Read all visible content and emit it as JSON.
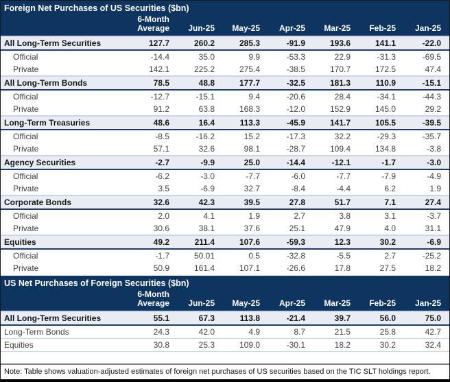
{
  "colors": {
    "header_navy": "#0e355f",
    "section_row_bg": "#e9edf3",
    "section_underline_navy": "#1d3c66",
    "light_blue_line": "#c7d6e9",
    "note_rule_gray": "#7f7f7f"
  },
  "columns": {
    "avg_line1": "6-Month",
    "avg_line2": "Average",
    "months": [
      "Jun-25",
      "May-25",
      "Apr-25",
      "Mar-25",
      "Feb-25",
      "Jan-25"
    ]
  },
  "tables": [
    {
      "title": "Foreign Net Purchases of US Securities ($bn)",
      "rows": [
        {
          "style": "section",
          "label": "All Long-Term Securities",
          "values": [
            "127.7",
            "260.2",
            "285.3",
            "-91.9",
            "193.6",
            "141.1",
            "-22.0"
          ]
        },
        {
          "style": "sub",
          "label": "Official",
          "values": [
            "-14.4",
            "35.0",
            "9.9",
            "-53.3",
            "22.9",
            "-31.3",
            "-69.5"
          ]
        },
        {
          "style": "sub",
          "label": "Private",
          "values": [
            "142.1",
            "225.2",
            "275.4",
            "-38.5",
            "170.7",
            "172.5",
            "47.4"
          ]
        },
        {
          "style": "section",
          "label": "All Long-Term Bonds",
          "values": [
            "78.5",
            "48.8",
            "177.7",
            "-32.5",
            "181.3",
            "110.9",
            "-15.1"
          ]
        },
        {
          "style": "sub",
          "label": "Official",
          "values": [
            "-12.7",
            "-15.1",
            "9.4",
            "-20.6",
            "28.4",
            "-34.1",
            "-44.3"
          ]
        },
        {
          "style": "sub",
          "label": "Private",
          "values": [
            "91.2",
            "63.8",
            "168.3",
            "-12.0",
            "152.9",
            "145.0",
            "29.2"
          ]
        },
        {
          "style": "section",
          "label": "Long-Term Treasuries",
          "values": [
            "48.6",
            "16.4",
            "113.3",
            "-45.9",
            "141.7",
            "105.5",
            "-39.5"
          ]
        },
        {
          "style": "sub",
          "label": "Official",
          "values": [
            "-8.5",
            "-16.2",
            "15.2",
            "-17.3",
            "32.2",
            "-29.3",
            "-35.7"
          ]
        },
        {
          "style": "sub",
          "label": "Private",
          "values": [
            "57.1",
            "32.6",
            "98.1",
            "-28.7",
            "109.4",
            "134.8",
            "-3.8"
          ]
        },
        {
          "style": "section",
          "label": "Agency Securities",
          "values": [
            "-2.7",
            "-9.9",
            "25.0",
            "-14.4",
            "-12.1",
            "-1.7",
            "-3.0"
          ]
        },
        {
          "style": "sub",
          "label": "Official",
          "values": [
            "-6.2",
            "-3.0",
            "-7.7",
            "-6.0",
            "-7.7",
            "-7.9",
            "-4.9"
          ]
        },
        {
          "style": "sub",
          "label": "Private",
          "values": [
            "3.5",
            "-6.9",
            "32.7",
            "-8.4",
            "-4.4",
            "6.2",
            "1.9"
          ]
        },
        {
          "style": "section",
          "label": "Corporate Bonds",
          "values": [
            "32.6",
            "42.3",
            "39.5",
            "27.8",
            "51.7",
            "7.1",
            "27.4"
          ]
        },
        {
          "style": "sub",
          "label": "Official",
          "values": [
            "2.0",
            "4.1",
            "1.9",
            "2.7",
            "3.8",
            "3.1",
            "-3.7"
          ]
        },
        {
          "style": "sub",
          "label": "Private",
          "values": [
            "30.6",
            "38.1",
            "37.6",
            "25.1",
            "47.9",
            "4.0",
            "31.1"
          ]
        },
        {
          "style": "section",
          "label": "Equities",
          "values": [
            "49.2",
            "211.4",
            "107.6",
            "-59.3",
            "12.3",
            "30.2",
            "-6.9"
          ]
        },
        {
          "style": "sub",
          "label": "Official",
          "values": [
            "-1.7",
            "50.01",
            "0.5",
            "-32.8",
            "-5.5",
            "2.7",
            "-25.2"
          ]
        },
        {
          "style": "sub",
          "label": "Private",
          "values": [
            "50.9",
            "161.4",
            "107.1",
            "-26.6",
            "17.8",
            "27.5",
            "18.2"
          ]
        }
      ]
    },
    {
      "title": "US Net Purchases of Foreign Securities ($bn)",
      "rows": [
        {
          "style": "section",
          "label": "All Long-Term Securities",
          "values": [
            "55.1",
            "67.3",
            "113.8",
            "-21.4",
            "39.7",
            "56.0",
            "75.0"
          ]
        },
        {
          "style": "plain",
          "label": "Long-Term Bonds",
          "values": [
            "24.3",
            "42.0",
            "4.9",
            "8.7",
            "21.5",
            "25.8",
            "42.7"
          ]
        },
        {
          "style": "plain",
          "label": "Equities",
          "values": [
            "30.8",
            "25.3",
            "109.0",
            "-30.1",
            "18.2",
            "30.2",
            "32.4"
          ]
        }
      ]
    }
  ],
  "note": "Note: Table shows valuation-adjusted estimates of foreign net purchases of US securities based on the TIC SLT holdings report.",
  "chart_data": [
    {
      "type": "table",
      "title": "Foreign Net Purchases of US Securities ($bn)",
      "columns": [
        "6-Month Average",
        "Jun-25",
        "May-25",
        "Apr-25",
        "Mar-25",
        "Feb-25",
        "Jan-25"
      ],
      "rows": [
        {
          "label": "All Long-Term Securities",
          "values": [
            127.7,
            260.2,
            285.3,
            -91.9,
            193.6,
            141.1,
            -22.0
          ]
        },
        {
          "label": "All Long-Term Securities / Official",
          "values": [
            -14.4,
            35.0,
            9.9,
            -53.3,
            22.9,
            -31.3,
            -69.5
          ]
        },
        {
          "label": "All Long-Term Securities / Private",
          "values": [
            142.1,
            225.2,
            275.4,
            -38.5,
            170.7,
            172.5,
            47.4
          ]
        },
        {
          "label": "All Long-Term Bonds",
          "values": [
            78.5,
            48.8,
            177.7,
            -32.5,
            181.3,
            110.9,
            -15.1
          ]
        },
        {
          "label": "All Long-Term Bonds / Official",
          "values": [
            -12.7,
            -15.1,
            9.4,
            -20.6,
            28.4,
            -34.1,
            -44.3
          ]
        },
        {
          "label": "All Long-Term Bonds / Private",
          "values": [
            91.2,
            63.8,
            168.3,
            -12.0,
            152.9,
            145.0,
            29.2
          ]
        },
        {
          "label": "Long-Term Treasuries",
          "values": [
            48.6,
            16.4,
            113.3,
            -45.9,
            141.7,
            105.5,
            -39.5
          ]
        },
        {
          "label": "Long-Term Treasuries / Official",
          "values": [
            -8.5,
            -16.2,
            15.2,
            -17.3,
            32.2,
            -29.3,
            -35.7
          ]
        },
        {
          "label": "Long-Term Treasuries / Private",
          "values": [
            57.1,
            32.6,
            98.1,
            -28.7,
            109.4,
            134.8,
            -3.8
          ]
        },
        {
          "label": "Agency Securities",
          "values": [
            -2.7,
            -9.9,
            25.0,
            -14.4,
            -12.1,
            -1.7,
            -3.0
          ]
        },
        {
          "label": "Agency Securities / Official",
          "values": [
            -6.2,
            -3.0,
            -7.7,
            -6.0,
            -7.7,
            -7.9,
            -4.9
          ]
        },
        {
          "label": "Agency Securities / Private",
          "values": [
            3.5,
            -6.9,
            32.7,
            -8.4,
            -4.4,
            6.2,
            1.9
          ]
        },
        {
          "label": "Corporate Bonds",
          "values": [
            32.6,
            42.3,
            39.5,
            27.8,
            51.7,
            7.1,
            27.4
          ]
        },
        {
          "label": "Corporate Bonds / Official",
          "values": [
            2.0,
            4.1,
            1.9,
            2.7,
            3.8,
            3.1,
            -3.7
          ]
        },
        {
          "label": "Corporate Bonds / Private",
          "values": [
            30.6,
            38.1,
            37.6,
            25.1,
            47.9,
            4.0,
            31.1
          ]
        },
        {
          "label": "Equities",
          "values": [
            49.2,
            211.4,
            107.6,
            -59.3,
            12.3,
            30.2,
            -6.9
          ]
        },
        {
          "label": "Equities / Official",
          "values": [
            -1.7,
            50.01,
            0.5,
            -32.8,
            -5.5,
            2.7,
            -25.2
          ]
        },
        {
          "label": "Equities / Private",
          "values": [
            50.9,
            161.4,
            107.1,
            -26.6,
            17.8,
            27.5,
            18.2
          ]
        }
      ]
    },
    {
      "type": "table",
      "title": "US Net Purchases of Foreign Securities ($bn)",
      "columns": [
        "6-Month Average",
        "Jun-25",
        "May-25",
        "Apr-25",
        "Mar-25",
        "Feb-25",
        "Jan-25"
      ],
      "rows": [
        {
          "label": "All Long-Term Securities",
          "values": [
            55.1,
            67.3,
            113.8,
            -21.4,
            39.7,
            56.0,
            75.0
          ]
        },
        {
          "label": "Long-Term Bonds",
          "values": [
            24.3,
            42.0,
            4.9,
            8.7,
            21.5,
            25.8,
            42.7
          ]
        },
        {
          "label": "Equities",
          "values": [
            30.8,
            25.3,
            109.0,
            -30.1,
            18.2,
            30.2,
            32.4
          ]
        }
      ]
    }
  ]
}
